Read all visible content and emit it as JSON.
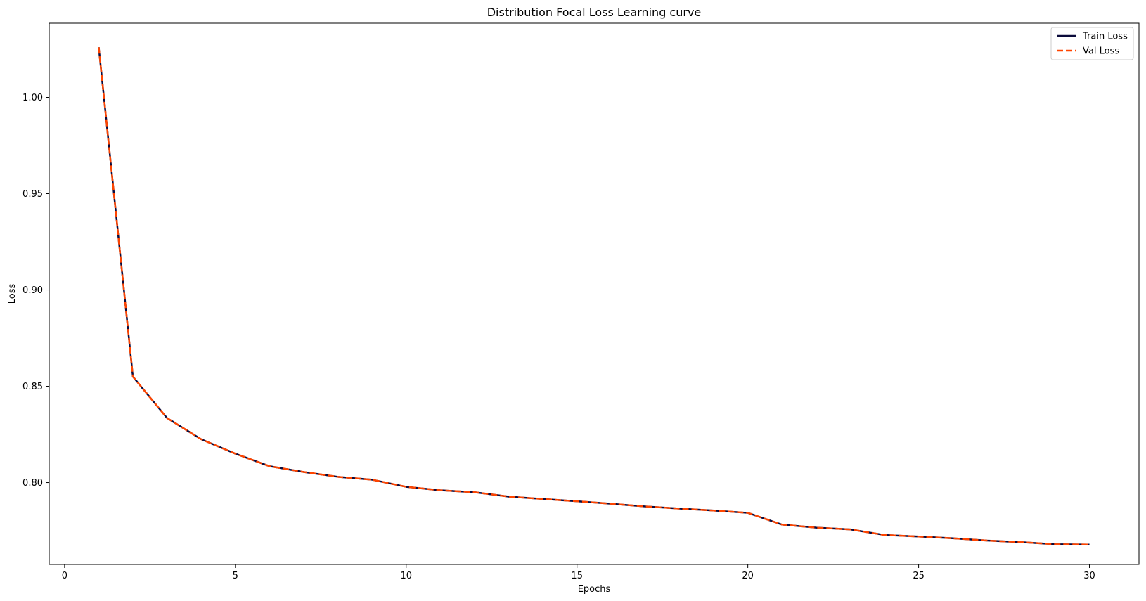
{
  "chart_data": {
    "type": "line",
    "title": "Distribution Focal Loss Learning curve",
    "xlabel": "Epochs",
    "ylabel": "Loss",
    "xlim": [
      -0.45,
      31.45
    ],
    "ylim": [
      0.7575,
      1.0385
    ],
    "xticks": [
      0,
      5,
      10,
      15,
      20,
      25,
      30
    ],
    "xtick_labels": [
      "0",
      "5",
      "10",
      "15",
      "20",
      "25",
      "30"
    ],
    "yticks": [
      0.8,
      0.85,
      0.9,
      0.95,
      1.0
    ],
    "ytick_labels": [
      "0.80",
      "0.85",
      "0.90",
      "0.95",
      "1.00"
    ],
    "grid": false,
    "legend_position": "top-right",
    "x": [
      1,
      2,
      3,
      4,
      5,
      6,
      7,
      8,
      9,
      10,
      11,
      12,
      13,
      14,
      15,
      16,
      17,
      18,
      19,
      20,
      21,
      22,
      23,
      24,
      25,
      26,
      27,
      28,
      29,
      30
    ],
    "series": [
      {
        "name": "Train Loss",
        "color": "#0b0b3b",
        "style": "solid",
        "values": [
          1.026,
          0.855,
          0.8335,
          0.8225,
          0.815,
          0.8085,
          0.8055,
          0.803,
          0.8015,
          0.7978,
          0.796,
          0.795,
          0.7927,
          0.7915,
          0.7903,
          0.789,
          0.7876,
          0.7865,
          0.7855,
          0.7843,
          0.7782,
          0.7766,
          0.7757,
          0.7728,
          0.772,
          0.7711,
          0.7699,
          0.7691,
          0.768,
          0.7678
        ]
      },
      {
        "name": "Val Loss",
        "color": "#ff4500",
        "style": "dashed",
        "values": [
          1.026,
          0.855,
          0.8335,
          0.8225,
          0.815,
          0.8085,
          0.8055,
          0.803,
          0.8015,
          0.7978,
          0.796,
          0.795,
          0.7927,
          0.7915,
          0.7903,
          0.789,
          0.7876,
          0.7865,
          0.7855,
          0.7843,
          0.7782,
          0.7766,
          0.7757,
          0.7728,
          0.772,
          0.7711,
          0.7699,
          0.7691,
          0.768,
          0.7678
        ]
      }
    ]
  }
}
